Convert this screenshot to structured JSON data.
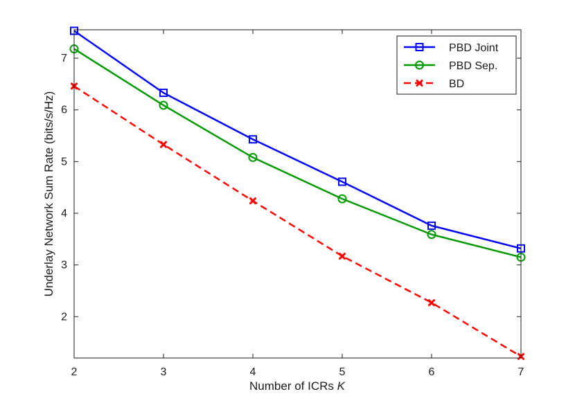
{
  "chart_data": {
    "type": "line",
    "title": "",
    "xlabel": "Number of ICRs",
    "xlabel_var": "K",
    "ylabel": "Underlay Network Sum Rate (bits/s/Hz)",
    "x": [
      2,
      3,
      4,
      5,
      6,
      7
    ],
    "xlim": [
      2,
      7
    ],
    "ylim": [
      1.2,
      7.55
    ],
    "xticks": [
      2,
      3,
      4,
      5,
      6,
      7
    ],
    "yticks": [
      2,
      3,
      4,
      5,
      6,
      7
    ],
    "grid": false,
    "legend_position": "top-right",
    "series": [
      {
        "name": "PBD Joint",
        "values": [
          7.53,
          6.33,
          5.43,
          4.61,
          3.76,
          3.32
        ],
        "color": "#0000ff",
        "marker": "square",
        "dash": "solid"
      },
      {
        "name": "PBD Sep.",
        "values": [
          7.18,
          6.09,
          5.08,
          4.28,
          3.59,
          3.15
        ],
        "color": "#009900",
        "marker": "circle",
        "dash": "solid"
      },
      {
        "name": "BD",
        "values": [
          6.46,
          5.33,
          4.24,
          3.17,
          2.27,
          1.23
        ],
        "color": "#ff0000",
        "marker": "x",
        "dash": "dashed"
      }
    ]
  }
}
